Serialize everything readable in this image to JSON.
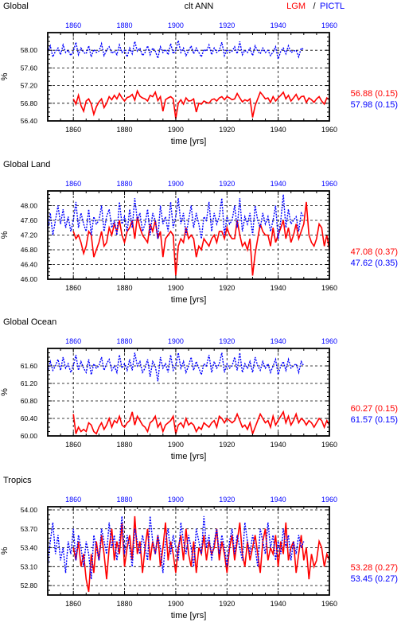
{
  "header": {
    "left_title": "Global",
    "center_title": "clt ANN",
    "legend_lgm": "LGM",
    "legend_sep": "/",
    "legend_pictl": "PICTL"
  },
  "colors": {
    "lgm": "#ff0000",
    "pictl": "#0000ff",
    "axis": "#000000"
  },
  "chart_data": [
    {
      "type": "line",
      "title": "Global",
      "xlabel": "time [yrs]",
      "ylabel": "%",
      "ylim": [
        56.4,
        58.4
      ],
      "yticks": [
        "56.40",
        "56.80",
        "57.20",
        "57.60",
        "58.00"
      ],
      "xlim_bottom": [
        1850,
        1960
      ],
      "xlim_top": [
        1850,
        1960
      ],
      "xticks": [
        "1860",
        "1880",
        "1900",
        "1920",
        "1940",
        "1960"
      ],
      "stats": {
        "lgm": "56.88 (0.15)",
        "pictl": "57.98 (0.15)"
      },
      "series": [
        {
          "name": "LGM",
          "axis": "bottom",
          "x_start": 1860,
          "x_end": 1960,
          "values": [
            56.9,
            56.78,
            56.98,
            56.75,
            56.62,
            56.85,
            56.9,
            56.78,
            56.55,
            56.72,
            56.83,
            56.9,
            56.7,
            56.8,
            56.95,
            56.88,
            56.98,
            56.9,
            57.02,
            56.92,
            56.85,
            56.93,
            56.95,
            57.0,
            56.87,
            57.08,
            56.96,
            56.92,
            56.9,
            56.85,
            56.98,
            56.95,
            57.05,
            56.86,
            56.95,
            56.62,
            56.88,
            56.92,
            56.95,
            56.9,
            56.45,
            56.8,
            56.88,
            56.78,
            56.92,
            56.85,
            56.86,
            56.9,
            56.6,
            56.8,
            56.78,
            56.85,
            56.82,
            56.8,
            56.88,
            56.9,
            56.85,
            56.92,
            56.95,
            56.88,
            56.95,
            56.92,
            56.88,
            56.9,
            57.02,
            56.92,
            56.83,
            56.88,
            56.85,
            56.9,
            56.48,
            56.75,
            56.9,
            57.05,
            56.98,
            56.9,
            56.92,
            56.82,
            56.95,
            56.85,
            56.92,
            56.98,
            57.05,
            56.9,
            56.98,
            56.85,
            56.92,
            57.0,
            56.88,
            56.95,
            56.96,
            56.82,
            56.92,
            56.88,
            56.82,
            56.9,
            56.95,
            56.85,
            56.78,
            56.92,
            56.88
          ]
        },
        {
          "name": "PICTL",
          "axis": "top",
          "x_start": 1850,
          "x_end": 1950,
          "values": [
            57.95,
            58.1,
            57.85,
            57.98,
            58.05,
            57.9,
            58.12,
            57.95,
            58.0,
            57.88,
            57.98,
            58.18,
            57.9,
            58.05,
            57.95,
            57.92,
            58.1,
            57.85,
            58.02,
            57.95,
            57.98,
            58.15,
            57.88,
            58.0,
            58.08,
            57.93,
            57.98,
            57.9,
            58.12,
            57.95,
            58.0,
            57.85,
            58.05,
            57.92,
            58.2,
            57.98,
            58.05,
            57.88,
            57.95,
            58.1,
            57.9,
            58.05,
            57.98,
            57.82,
            58.08,
            57.95,
            58.02,
            57.9,
            58.15,
            57.92,
            58.0,
            58.22,
            57.95,
            58.05,
            57.88,
            57.98,
            58.1,
            57.92,
            58.05,
            57.95,
            57.85,
            58.02,
            57.98,
            58.12,
            57.9,
            58.05,
            57.95,
            58.0,
            58.18,
            57.88,
            58.02,
            57.95,
            57.98,
            58.08,
            57.92,
            58.2,
            57.9,
            58.0,
            57.95,
            58.05,
            57.88,
            58.1,
            57.98,
            57.92,
            58.05,
            57.95,
            58.0,
            57.88,
            57.96,
            58.08,
            57.8,
            57.98,
            58.05,
            57.92,
            58.1,
            57.95,
            57.98,
            58.0,
            57.85,
            58.05,
            58.02
          ]
        }
      ]
    },
    {
      "type": "line",
      "title": "Global Land",
      "xlabel": "time [yrs]",
      "ylabel": "%",
      "ylim": [
        46.0,
        48.4
      ],
      "yticks": [
        "46.00",
        "46.40",
        "46.80",
        "47.20",
        "47.60",
        "48.00"
      ],
      "xlim_bottom": [
        1850,
        1960
      ],
      "xlim_top": [
        1850,
        1960
      ],
      "xticks": [
        "1860",
        "1880",
        "1900",
        "1920",
        "1940",
        "1960"
      ],
      "stats": {
        "lgm": "47.08 (0.37)",
        "pictl": "47.62 (0.35)"
      },
      "series": [
        {
          "name": "LGM",
          "axis": "bottom",
          "x_start": 1860,
          "x_end": 1960,
          "values": [
            47.3,
            47.1,
            47.2,
            47.0,
            46.7,
            46.9,
            47.3,
            47.2,
            46.6,
            46.8,
            47.0,
            47.3,
            46.9,
            47.0,
            47.4,
            47.2,
            47.5,
            47.3,
            47.6,
            47.2,
            47.0,
            47.3,
            47.4,
            47.6,
            47.1,
            47.7,
            47.4,
            47.2,
            47.1,
            47.0,
            47.5,
            47.3,
            47.6,
            47.1,
            47.3,
            46.6,
            47.1,
            47.2,
            47.3,
            47.2,
            46.1,
            46.9,
            47.1,
            47.0,
            47.4,
            47.1,
            47.2,
            47.1,
            46.6,
            46.9,
            46.8,
            47.1,
            47.0,
            46.9,
            47.1,
            47.2,
            47.0,
            47.3,
            47.3,
            47.1,
            47.4,
            47.2,
            47.1,
            47.1,
            47.6,
            47.2,
            46.9,
            47.0,
            46.8,
            47.1,
            46.1,
            46.7,
            47.1,
            47.5,
            47.3,
            47.2,
            47.2,
            46.9,
            47.4,
            47.0,
            47.2,
            47.4,
            47.6,
            47.1,
            47.4,
            47.0,
            47.2,
            47.5,
            47.1,
            47.3,
            47.5,
            48.1,
            47.2,
            47.0,
            46.9,
            47.1,
            47.5,
            47.4,
            46.9,
            47.2,
            46.8
          ]
        },
        {
          "name": "PICTL",
          "axis": "top",
          "x_start": 1850,
          "x_end": 1950,
          "values": [
            47.3,
            47.8,
            47.2,
            47.6,
            48.0,
            47.5,
            47.9,
            47.4,
            47.7,
            47.3,
            47.6,
            48.1,
            47.4,
            47.8,
            47.5,
            47.3,
            47.9,
            47.2,
            47.7,
            47.5,
            47.6,
            48.0,
            47.3,
            47.7,
            47.9,
            47.4,
            47.6,
            47.2,
            48.1,
            47.5,
            47.7,
            47.3,
            47.9,
            47.4,
            48.2,
            47.6,
            47.8,
            47.3,
            47.5,
            47.9,
            47.2,
            47.8,
            47.6,
            47.1,
            48.0,
            47.5,
            47.7,
            47.3,
            48.1,
            47.4,
            47.7,
            48.2,
            47.5,
            47.8,
            47.2,
            47.6,
            48.0,
            47.4,
            47.8,
            47.5,
            47.1,
            47.7,
            47.6,
            48.1,
            47.3,
            47.8,
            47.5,
            47.7,
            48.2,
            47.2,
            47.7,
            47.5,
            47.6,
            48.0,
            47.4,
            48.2,
            47.3,
            47.7,
            47.5,
            47.8,
            47.2,
            48.0,
            47.6,
            47.4,
            47.8,
            47.5,
            47.7,
            47.3,
            47.6,
            48.0,
            47.1,
            47.6,
            48.3,
            47.4,
            47.9,
            47.5,
            47.6,
            47.7,
            47.3,
            47.8,
            47.7
          ]
        }
      ]
    },
    {
      "type": "line",
      "title": "Global Ocean",
      "xlabel": "time [yrs]",
      "ylabel": "%",
      "ylim": [
        60.0,
        62.0
      ],
      "yticks": [
        "60.00",
        "60.40",
        "60.80",
        "61.20",
        "61.60"
      ],
      "xlim_bottom": [
        1850,
        1960
      ],
      "xlim_top": [
        1850,
        1960
      ],
      "xticks": [
        "1860",
        "1880",
        "1900",
        "1920",
        "1940",
        "1960"
      ],
      "stats": {
        "lgm": "60.27 (0.15)",
        "pictl": "61.57 (0.15)"
      },
      "series": [
        {
          "name": "LGM",
          "axis": "bottom",
          "x_start": 1860,
          "x_end": 1960,
          "values": [
            60.5,
            60.05,
            60.2,
            60.1,
            60.15,
            60.1,
            60.3,
            60.25,
            60.1,
            60.05,
            60.2,
            60.3,
            60.15,
            60.25,
            60.4,
            60.2,
            60.35,
            60.3,
            60.45,
            60.25,
            60.2,
            60.3,
            60.35,
            60.55,
            60.25,
            60.45,
            60.35,
            60.25,
            60.2,
            60.1,
            60.3,
            60.35,
            60.45,
            60.2,
            60.3,
            60.1,
            60.25,
            60.3,
            60.35,
            60.45,
            60.05,
            60.25,
            60.3,
            60.2,
            60.4,
            60.25,
            60.3,
            60.25,
            60.1,
            60.2,
            60.15,
            60.3,
            60.25,
            60.2,
            60.3,
            60.35,
            60.2,
            60.45,
            60.4,
            60.3,
            60.4,
            60.35,
            60.3,
            60.35,
            60.5,
            60.35,
            60.2,
            60.25,
            60.15,
            60.3,
            60.05,
            60.2,
            60.35,
            60.5,
            60.4,
            60.3,
            60.35,
            60.2,
            60.45,
            60.25,
            60.35,
            60.45,
            60.55,
            60.3,
            60.45,
            60.25,
            60.35,
            60.5,
            60.3,
            60.4,
            60.35,
            60.25,
            60.35,
            60.3,
            60.2,
            60.3,
            60.4,
            60.35,
            60.2,
            60.35,
            60.25
          ]
        },
        {
          "name": "PICTL",
          "axis": "top",
          "x_start": 1850,
          "x_end": 1950,
          "values": [
            61.45,
            61.7,
            61.5,
            61.6,
            61.75,
            61.5,
            61.8,
            61.55,
            61.65,
            61.45,
            61.6,
            61.85,
            61.5,
            61.7,
            61.55,
            61.45,
            61.75,
            61.4,
            61.65,
            61.55,
            61.6,
            61.8,
            61.5,
            61.65,
            61.75,
            61.5,
            61.6,
            61.45,
            61.85,
            61.55,
            61.65,
            61.5,
            61.75,
            61.5,
            61.9,
            61.6,
            61.7,
            61.45,
            61.55,
            61.75,
            61.35,
            61.7,
            61.6,
            61.25,
            61.8,
            61.55,
            61.65,
            61.45,
            61.85,
            61.5,
            61.6,
            61.9,
            61.55,
            61.7,
            61.45,
            61.6,
            61.8,
            61.5,
            61.7,
            61.55,
            61.4,
            61.65,
            61.6,
            61.85,
            61.45,
            61.7,
            61.55,
            61.65,
            61.9,
            61.45,
            61.65,
            61.55,
            61.6,
            61.8,
            61.5,
            61.9,
            61.45,
            61.65,
            61.55,
            61.7,
            61.45,
            61.8,
            61.6,
            61.5,
            61.7,
            61.55,
            61.65,
            61.45,
            61.6,
            61.75,
            61.4,
            61.6,
            61.7,
            61.5,
            61.75,
            61.55,
            61.6,
            61.65,
            61.45,
            61.7,
            61.6
          ]
        }
      ]
    },
    {
      "type": "line",
      "title": "Tropics",
      "xlabel": "time [yrs]",
      "ylabel": "%",
      "ylim": [
        52.65,
        54.05
      ],
      "yticks": [
        "52.80",
        "53.10",
        "53.40",
        "53.70",
        "54.00"
      ],
      "xlim_bottom": [
        1850,
        1960
      ],
      "xlim_top": [
        1850,
        1960
      ],
      "xticks": [
        "1860",
        "1880",
        "1900",
        "1920",
        "1940",
        "1960"
      ],
      "stats": {
        "lgm": "53.28 (0.27)",
        "pictl": "53.45 (0.27)"
      },
      "series": [
        {
          "name": "LGM",
          "axis": "bottom",
          "x_start": 1860,
          "x_end": 1960,
          "values": [
            53.4,
            53.2,
            53.5,
            53.1,
            53.3,
            52.9,
            52.7,
            53.3,
            53.0,
            53.5,
            53.2,
            53.6,
            53.3,
            52.9,
            53.4,
            53.7,
            53.2,
            53.5,
            53.3,
            53.8,
            53.1,
            53.4,
            53.6,
            53.2,
            53.9,
            53.3,
            53.5,
            53.0,
            53.4,
            53.7,
            53.2,
            53.5,
            53.3,
            53.6,
            53.1,
            53.4,
            53.8,
            53.2,
            53.5,
            53.3,
            53.0,
            53.4,
            53.6,
            53.2,
            53.7,
            53.3,
            53.1,
            53.5,
            53.0,
            53.4,
            53.3,
            53.6,
            53.2,
            53.5,
            53.3,
            53.4,
            53.7,
            53.2,
            53.5,
            53.3,
            53.0,
            53.4,
            53.6,
            53.2,
            53.5,
            53.8,
            53.3,
            53.1,
            53.5,
            53.2,
            53.4,
            53.6,
            53.3,
            53.0,
            53.5,
            53.7,
            53.2,
            53.4,
            53.3,
            53.6,
            53.1,
            53.5,
            53.3,
            53.8,
            53.2,
            53.4,
            53.5,
            53.0,
            53.3,
            53.6,
            53.2,
            53.4,
            52.9,
            53.3,
            53.1,
            53.2,
            53.5,
            53.4,
            53.1,
            53.3,
            53.2
          ]
        },
        {
          "name": "PICTL",
          "axis": "top",
          "x_start": 1850,
          "x_end": 1950,
          "values": [
            53.1,
            53.5,
            53.8,
            53.3,
            53.6,
            53.2,
            53.4,
            53.0,
            53.5,
            53.3,
            53.7,
            53.2,
            53.6,
            53.4,
            53.1,
            53.5,
            53.3,
            52.9,
            53.6,
            53.4,
            53.2,
            53.7,
            53.5,
            53.3,
            53.8,
            53.4,
            53.6,
            53.2,
            53.5,
            53.9,
            53.3,
            53.6,
            53.4,
            53.1,
            53.7,
            53.5,
            53.3,
            53.6,
            53.4,
            53.2,
            53.9,
            53.5,
            53.3,
            53.6,
            53.4,
            53.0,
            53.5,
            53.7,
            53.3,
            53.6,
            53.4,
            53.2,
            53.8,
            53.5,
            53.3,
            53.6,
            53.4,
            53.1,
            53.7,
            53.5,
            53.3,
            53.9,
            53.4,
            53.6,
            53.2,
            53.5,
            53.7,
            53.3,
            53.6,
            53.4,
            53.1,
            53.5,
            53.7,
            53.3,
            53.6,
            53.4,
            53.2,
            53.8,
            53.5,
            53.3,
            53.6,
            53.4,
            53.1,
            53.7,
            53.5,
            53.3,
            53.8,
            53.4,
            53.6,
            53.2,
            53.5,
            53.3,
            53.7,
            53.4,
            53.6,
            53.2,
            53.5,
            53.3,
            53.6,
            53.4,
            53.5
          ]
        }
      ]
    }
  ]
}
